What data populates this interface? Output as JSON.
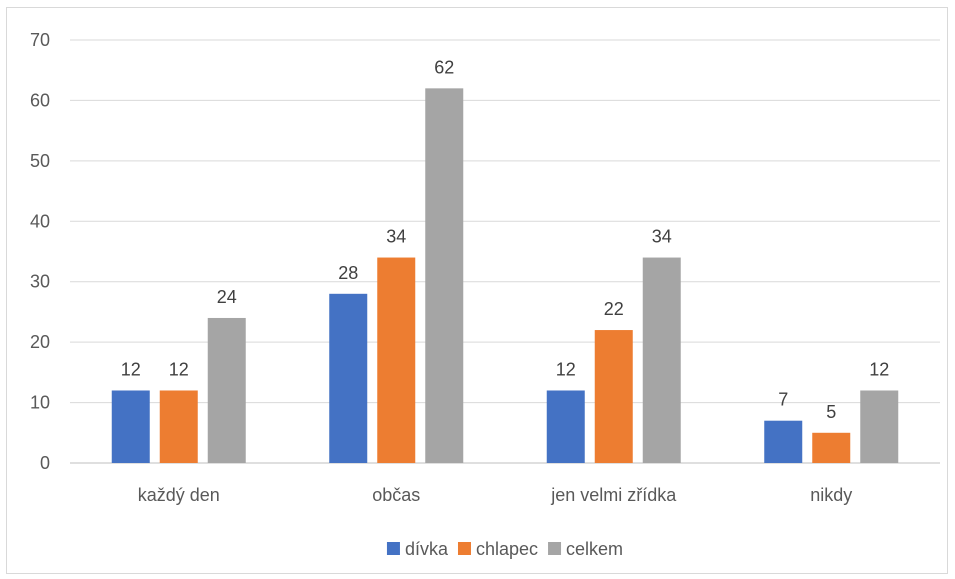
{
  "chart_data": {
    "type": "bar",
    "categories": [
      "každý den",
      "občas",
      "jen velmi zřídka",
      "nikdy"
    ],
    "series": [
      {
        "name": "dívka",
        "color": "#4472c4",
        "values": [
          12,
          28,
          12,
          7
        ]
      },
      {
        "name": "chlapec",
        "color": "#ed7d31",
        "values": [
          12,
          34,
          22,
          5
        ]
      },
      {
        "name": "celkem",
        "color": "#a5a5a5",
        "values": [
          24,
          62,
          34,
          12
        ]
      }
    ],
    "ylim": [
      0,
      70
    ],
    "yticks": [
      0,
      10,
      20,
      30,
      40,
      50,
      60,
      70
    ],
    "grid": true,
    "legend_position": "bottom",
    "data_labels": true
  }
}
